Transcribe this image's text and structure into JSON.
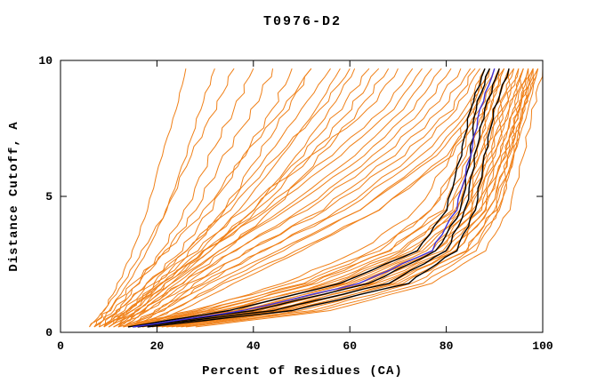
{
  "chart_data": {
    "type": "line",
    "title": "T0976-D2",
    "xlabel": "Percent of Residues (CA)",
    "ylabel": "Distance Cutoff, A",
    "xlim": [
      0,
      100
    ],
    "ylim": [
      0,
      10
    ],
    "x_ticks": [
      0,
      20,
      40,
      60,
      80,
      100
    ],
    "y_ticks": [
      0,
      5,
      10
    ],
    "grid": false,
    "legend": "none",
    "colors": {
      "orange": "#f08018",
      "black": "#000000",
      "blue": "#4030d8"
    },
    "y_levels": [
      0.2,
      0.8,
      1.8,
      3.0,
      4.5,
      6.5,
      8.2,
      9.7
    ],
    "series": [
      {
        "group": "orange",
        "xs": [
          7,
          9,
          12,
          15,
          18,
          21,
          24,
          26
        ]
      },
      {
        "group": "orange",
        "xs": [
          8,
          10,
          14,
          18,
          22,
          26,
          29,
          32
        ]
      },
      {
        "group": "orange",
        "xs": [
          6,
          9,
          13,
          17,
          22,
          27,
          32,
          36
        ]
      },
      {
        "group": "orange",
        "xs": [
          9,
          12,
          16,
          21,
          26,
          31,
          36,
          40
        ]
      },
      {
        "group": "orange",
        "xs": [
          7,
          11,
          16,
          22,
          28,
          34,
          40,
          44
        ]
      },
      {
        "group": "orange",
        "xs": [
          8,
          12,
          18,
          25,
          31,
          38,
          44,
          48
        ]
      },
      {
        "group": "orange",
        "xs": [
          10,
          14,
          20,
          27,
          34,
          41,
          47,
          52
        ]
      },
      {
        "group": "orange",
        "xs": [
          6,
          10,
          15,
          22,
          30,
          38,
          46,
          52
        ]
      },
      {
        "group": "orange",
        "xs": [
          9,
          13,
          19,
          26,
          34,
          43,
          50,
          56
        ]
      },
      {
        "group": "orange",
        "xs": [
          8,
          14,
          21,
          29,
          37,
          46,
          53,
          58
        ]
      },
      {
        "group": "orange",
        "xs": [
          11,
          16,
          23,
          31,
          40,
          49,
          56,
          61
        ]
      },
      {
        "group": "orange",
        "xs": [
          7,
          12,
          18,
          26,
          35,
          45,
          54,
          60
        ]
      },
      {
        "group": "orange",
        "xs": [
          10,
          15,
          22,
          30,
          40,
          50,
          58,
          64
        ]
      },
      {
        "group": "orange",
        "xs": [
          9,
          14,
          21,
          30,
          41,
          52,
          60,
          66
        ]
      },
      {
        "group": "orange",
        "xs": [
          12,
          17,
          25,
          34,
          44,
          54,
          62,
          68
        ]
      },
      {
        "group": "orange",
        "xs": [
          10,
          14,
          20,
          28,
          38,
          52,
          64,
          70
        ]
      },
      {
        "group": "orange",
        "xs": [
          11,
          16,
          22,
          31,
          42,
          56,
          67,
          73
        ]
      },
      {
        "group": "orange",
        "xs": [
          9,
          15,
          21,
          30,
          43,
          58,
          69,
          75
        ]
      },
      {
        "group": "orange",
        "xs": [
          12,
          17,
          24,
          33,
          46,
          61,
          71,
          77
        ]
      },
      {
        "group": "orange",
        "xs": [
          10,
          16,
          23,
          33,
          47,
          63,
          73,
          79
        ]
      },
      {
        "group": "orange",
        "xs": [
          13,
          18,
          26,
          36,
          50,
          65,
          75,
          81
        ]
      },
      {
        "group": "orange",
        "xs": [
          11,
          17,
          25,
          36,
          51,
          67,
          77,
          83
        ]
      },
      {
        "group": "orange",
        "xs": [
          14,
          20,
          28,
          39,
          54,
          69,
          79,
          85
        ]
      },
      {
        "group": "orange",
        "xs": [
          12,
          18,
          27,
          39,
          55,
          71,
          81,
          86
        ]
      },
      {
        "group": "orange",
        "xs": [
          15,
          21,
          30,
          42,
          58,
          73,
          82,
          87
        ]
      },
      {
        "group": "orange",
        "xs": [
          13,
          20,
          29,
          42,
          59,
          75,
          84,
          88
        ]
      },
      {
        "group": "orange",
        "xs": [
          16,
          23,
          33,
          46,
          62,
          77,
          85,
          89
        ]
      },
      {
        "group": "orange",
        "xs": [
          14,
          21,
          31,
          45,
          62,
          78,
          86,
          90
        ]
      },
      {
        "group": "orange",
        "xs": [
          17,
          25,
          36,
          50,
          66,
          80,
          87,
          91
        ]
      },
      {
        "group": "orange",
        "xs": [
          15,
          23,
          34,
          49,
          66,
          81,
          88,
          92
        ]
      },
      {
        "group": "orange",
        "xs": [
          13,
          28,
          46,
          62,
          74,
          81,
          85,
          88
        ]
      },
      {
        "group": "orange",
        "xs": [
          14,
          30,
          50,
          66,
          77,
          83,
          86,
          89
        ]
      },
      {
        "group": "orange",
        "xs": [
          15,
          32,
          52,
          68,
          79,
          85,
          88,
          91
        ]
      },
      {
        "group": "orange",
        "xs": [
          16,
          34,
          55,
          71,
          81,
          86,
          89,
          92
        ]
      },
      {
        "group": "orange",
        "xs": [
          12,
          27,
          48,
          65,
          77,
          84,
          88,
          91
        ]
      },
      {
        "group": "orange",
        "xs": [
          17,
          36,
          57,
          73,
          82,
          87,
          90,
          93
        ]
      },
      {
        "group": "orange",
        "xs": [
          13,
          29,
          51,
          68,
          80,
          86,
          89,
          92
        ]
      },
      {
        "group": "orange",
        "xs": [
          18,
          38,
          59,
          75,
          84,
          88,
          91,
          94
        ]
      },
      {
        "group": "orange",
        "xs": [
          14,
          31,
          53,
          70,
          82,
          87,
          90,
          93
        ]
      },
      {
        "group": "orange",
        "xs": [
          19,
          40,
          61,
          77,
          85,
          89,
          92,
          95
        ]
      },
      {
        "group": "orange",
        "xs": [
          15,
          33,
          56,
          72,
          83,
          88,
          91,
          94
        ]
      },
      {
        "group": "orange",
        "xs": [
          20,
          42,
          63,
          78,
          86,
          90,
          93,
          96
        ]
      },
      {
        "group": "orange",
        "xs": [
          16,
          35,
          58,
          74,
          84,
          89,
          92,
          95
        ]
      },
      {
        "group": "orange",
        "xs": [
          21,
          44,
          65,
          80,
          87,
          91,
          94,
          97
        ]
      },
      {
        "group": "orange",
        "xs": [
          17,
          37,
          60,
          76,
          85,
          90,
          93,
          96
        ]
      },
      {
        "group": "orange",
        "xs": [
          22,
          46,
          67,
          81,
          88,
          92,
          95,
          97
        ]
      },
      {
        "group": "orange",
        "xs": [
          18,
          39,
          62,
          78,
          86,
          91,
          94,
          96
        ]
      },
      {
        "group": "orange",
        "xs": [
          23,
          48,
          69,
          82,
          89,
          93,
          95,
          98
        ]
      },
      {
        "group": "orange",
        "xs": [
          19,
          41,
          64,
          79,
          87,
          92,
          95,
          97
        ]
      },
      {
        "group": "orange",
        "xs": [
          24,
          50,
          71,
          84,
          90,
          93,
          96,
          98
        ]
      },
      {
        "group": "orange",
        "xs": [
          20,
          43,
          66,
          81,
          88,
          92,
          95,
          98
        ]
      },
      {
        "group": "orange",
        "xs": [
          25,
          52,
          73,
          85,
          91,
          94,
          96,
          99
        ]
      },
      {
        "group": "orange",
        "xs": [
          21,
          45,
          68,
          82,
          89,
          93,
          96,
          98
        ]
      },
      {
        "group": "orange",
        "xs": [
          26,
          54,
          75,
          86,
          91,
          94,
          97,
          99
        ]
      },
      {
        "group": "orange",
        "xs": [
          22,
          47,
          70,
          84,
          90,
          94,
          96,
          99
        ]
      },
      {
        "group": "orange",
        "xs": [
          28,
          56,
          77,
          88,
          93,
          96,
          98,
          100
        ]
      },
      {
        "group": "black",
        "xs": [
          14,
          35,
          58,
          74,
          80,
          83,
          85,
          88
        ]
      },
      {
        "group": "black",
        "xs": [
          15,
          40,
          64,
          78,
          83,
          85,
          86,
          89
        ]
      },
      {
        "group": "black",
        "xs": [
          16,
          44,
          68,
          80,
          84,
          86,
          88,
          91
        ]
      },
      {
        "group": "black",
        "xs": [
          18,
          48,
          72,
          82,
          86,
          88,
          90,
          93
        ]
      },
      {
        "group": "blue",
        "xs": [
          15,
          38,
          62,
          77,
          82,
          85,
          87,
          90
        ]
      }
    ]
  }
}
